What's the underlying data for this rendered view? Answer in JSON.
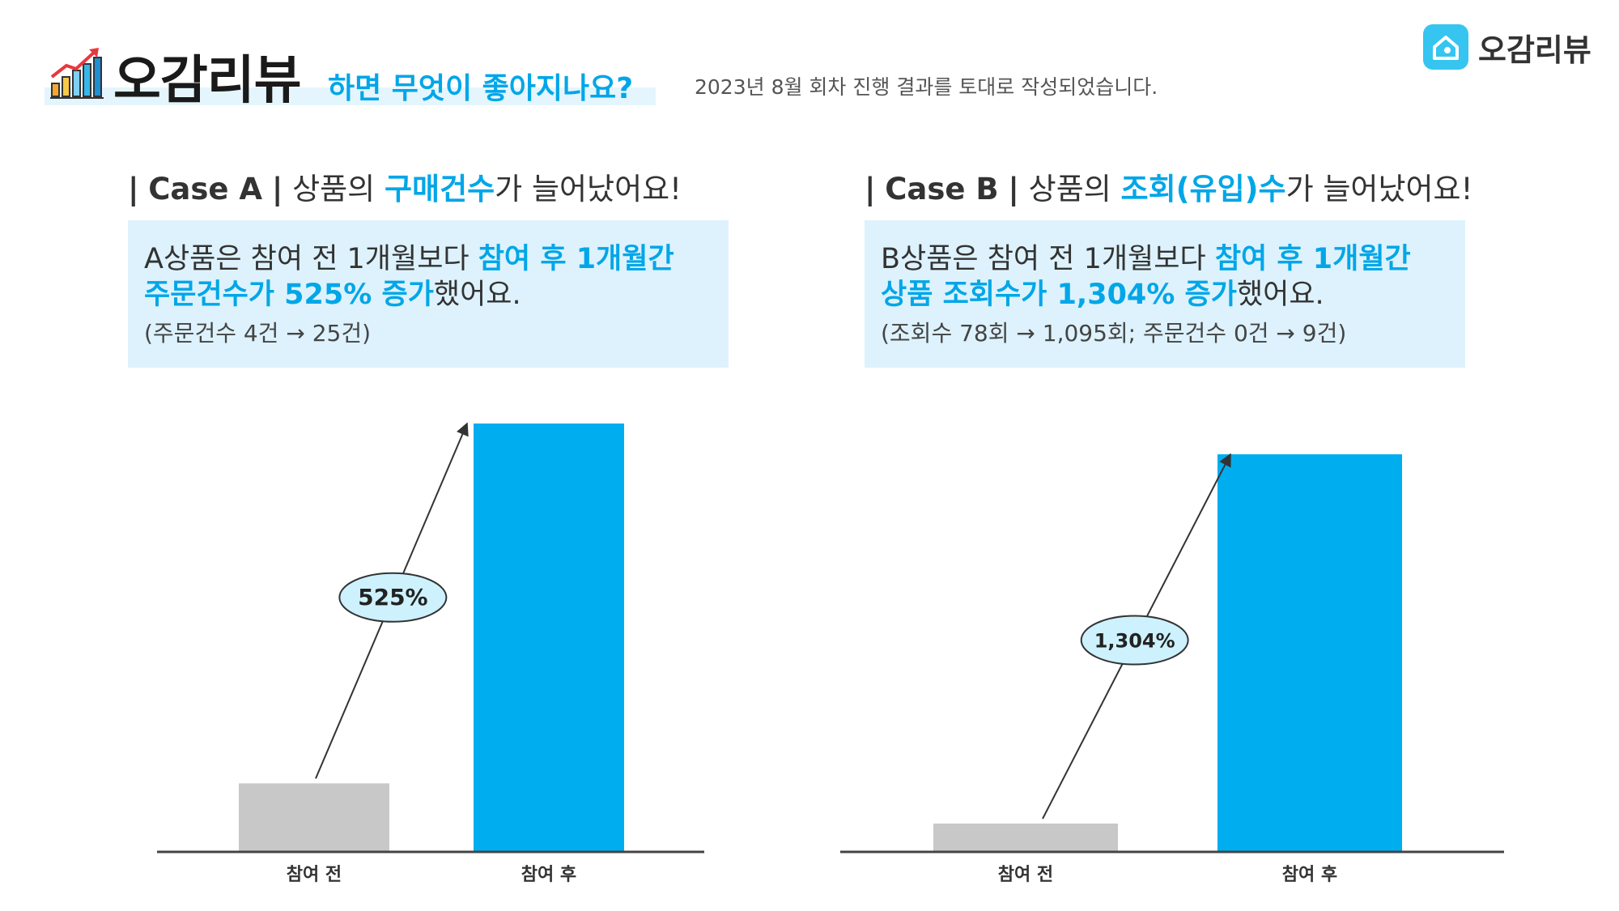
{
  "header": {
    "title": "오감리뷰",
    "subtitle": "하면 무엇이 좋아지나요?",
    "note": "2023년 8월 회차 진행 결과를 토대로 작성되었습니다.",
    "logo_icon": "bar-chart-growth-icon"
  },
  "brand": {
    "name": "오감리뷰",
    "icon": "house-logo-icon",
    "color": "#35c5f0"
  },
  "colors": {
    "accent": "#00a6e8",
    "bar_after": "#00aeef",
    "bar_before": "#c8c8c8",
    "box_bg": "#ddf2fc",
    "bubble": "#cdf1fd"
  },
  "case_a": {
    "bar": "|",
    "id": "Case A",
    "sep": "|",
    "pre": "상품의",
    "highlight": "구매건수",
    "post": "가 늘어났어요!",
    "line1_pre": "A상품은 참여 전 1개월보다",
    "line1_em": "참여 후 1개월간",
    "line2_em": "주문건수가 525% 증가",
    "line2_post": "했어요.",
    "line3": "(주문건수 4건 → 25건)"
  },
  "case_b": {
    "bar": "|",
    "id": "Case B",
    "sep": "|",
    "pre": "상품의",
    "highlight": "조회(유입)수",
    "post": "가 늘어났어요!",
    "line1_pre": "B상품은 참여 전 1개월보다",
    "line1_em": "참여 후 1개월간",
    "line2_em": "상품 조회수가 1,304% 증가",
    "line2_post": "했어요.",
    "line3": "(조회수 78회 → 1,095회; 주문건수 0건 → 9건)"
  },
  "chart_data": [
    {
      "type": "bar",
      "categories": [
        "참여 전",
        "참여 후"
      ],
      "values": [
        4,
        25
      ],
      "ylim": [
        0,
        25
      ],
      "annotation": "525%",
      "colors": [
        "#c8c8c8",
        "#00aeef"
      ],
      "grid": false
    },
    {
      "type": "bar",
      "categories": [
        "참여 전",
        "참여 후"
      ],
      "values": [
        78,
        1095
      ],
      "ylim": [
        0,
        1240
      ],
      "annotation": "1,304%",
      "colors": [
        "#c8c8c8",
        "#00aeef"
      ],
      "grid": false
    }
  ]
}
